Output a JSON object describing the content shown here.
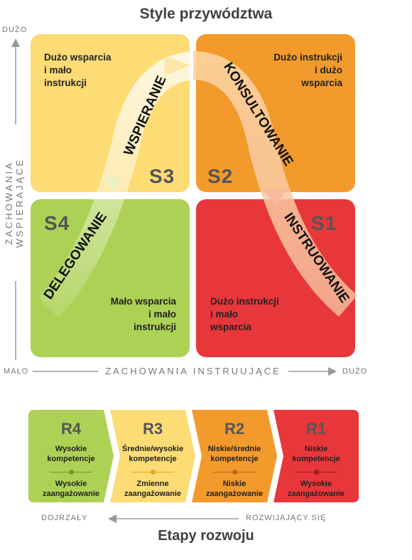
{
  "title": "Style przywództwa",
  "bottom_title": "Etapy rozwoju",
  "y_axis": {
    "label": "ZACHOWANIA WSPIERAJĄCE",
    "high": "DUŻO"
  },
  "x_axis": {
    "label": "ZACHOWANIA INSTRUUJĄCE",
    "low": "MAŁO",
    "high": "DUŻO"
  },
  "quadrants": {
    "tl": {
      "text": [
        "Dużo wsparcia",
        "i mało",
        "instrukcji"
      ],
      "style": "S3",
      "color": "#fddc76"
    },
    "tr": {
      "text": [
        "Dużo instrukcji",
        "i dużo",
        "wsparcia"
      ],
      "style": "S2",
      "color": "#f39a2d"
    },
    "bl": {
      "text": [
        "Mało wsparcia",
        "i mało",
        "instrukcji"
      ],
      "style": "S4",
      "color": "#acd155"
    },
    "br": {
      "text": [
        "Dużo instrukcji",
        "i mało",
        "wsparcia"
      ],
      "style": "S1",
      "color": "#e8373b"
    }
  },
  "curve_labels": {
    "delegating": "DELEGOWANIE",
    "supporting": "WSPIERANIE",
    "coaching": "KONSULTOWANIE",
    "directing": "INSTRUOWANIE"
  },
  "stages": [
    {
      "label": "R4",
      "line1a": "Wysokie",
      "line1b": "kompetencje",
      "line2a": "Wysokie",
      "line2b": "zaangażowanie",
      "color": "#acd155",
      "accent": "#6a9a2a"
    },
    {
      "label": "R3",
      "line1a": "Średnie/wysokie",
      "line1b": "kompetencje",
      "line2a": "Zmienne",
      "line2b": "zaangażowanie",
      "color": "#fddc76",
      "accent": "#e0a820"
    },
    {
      "label": "R2",
      "line1a": "Niskie/średnie",
      "line1b": "kompetencje",
      "line2a": "Niskie",
      "line2b": "zaangażowanie",
      "color": "#f39a2d",
      "accent": "#b86a10"
    },
    {
      "label": "R1",
      "line1a": "Niskie",
      "line1b": "kompetencje",
      "line2a": "Wysokie",
      "line2b": "zaangażowanie",
      "color": "#e8373b",
      "accent": "#a01a1c"
    }
  ],
  "development_axis": {
    "left": "DOJRZAŁY",
    "right": "ROZWIJAJĄCY SIĘ"
  }
}
